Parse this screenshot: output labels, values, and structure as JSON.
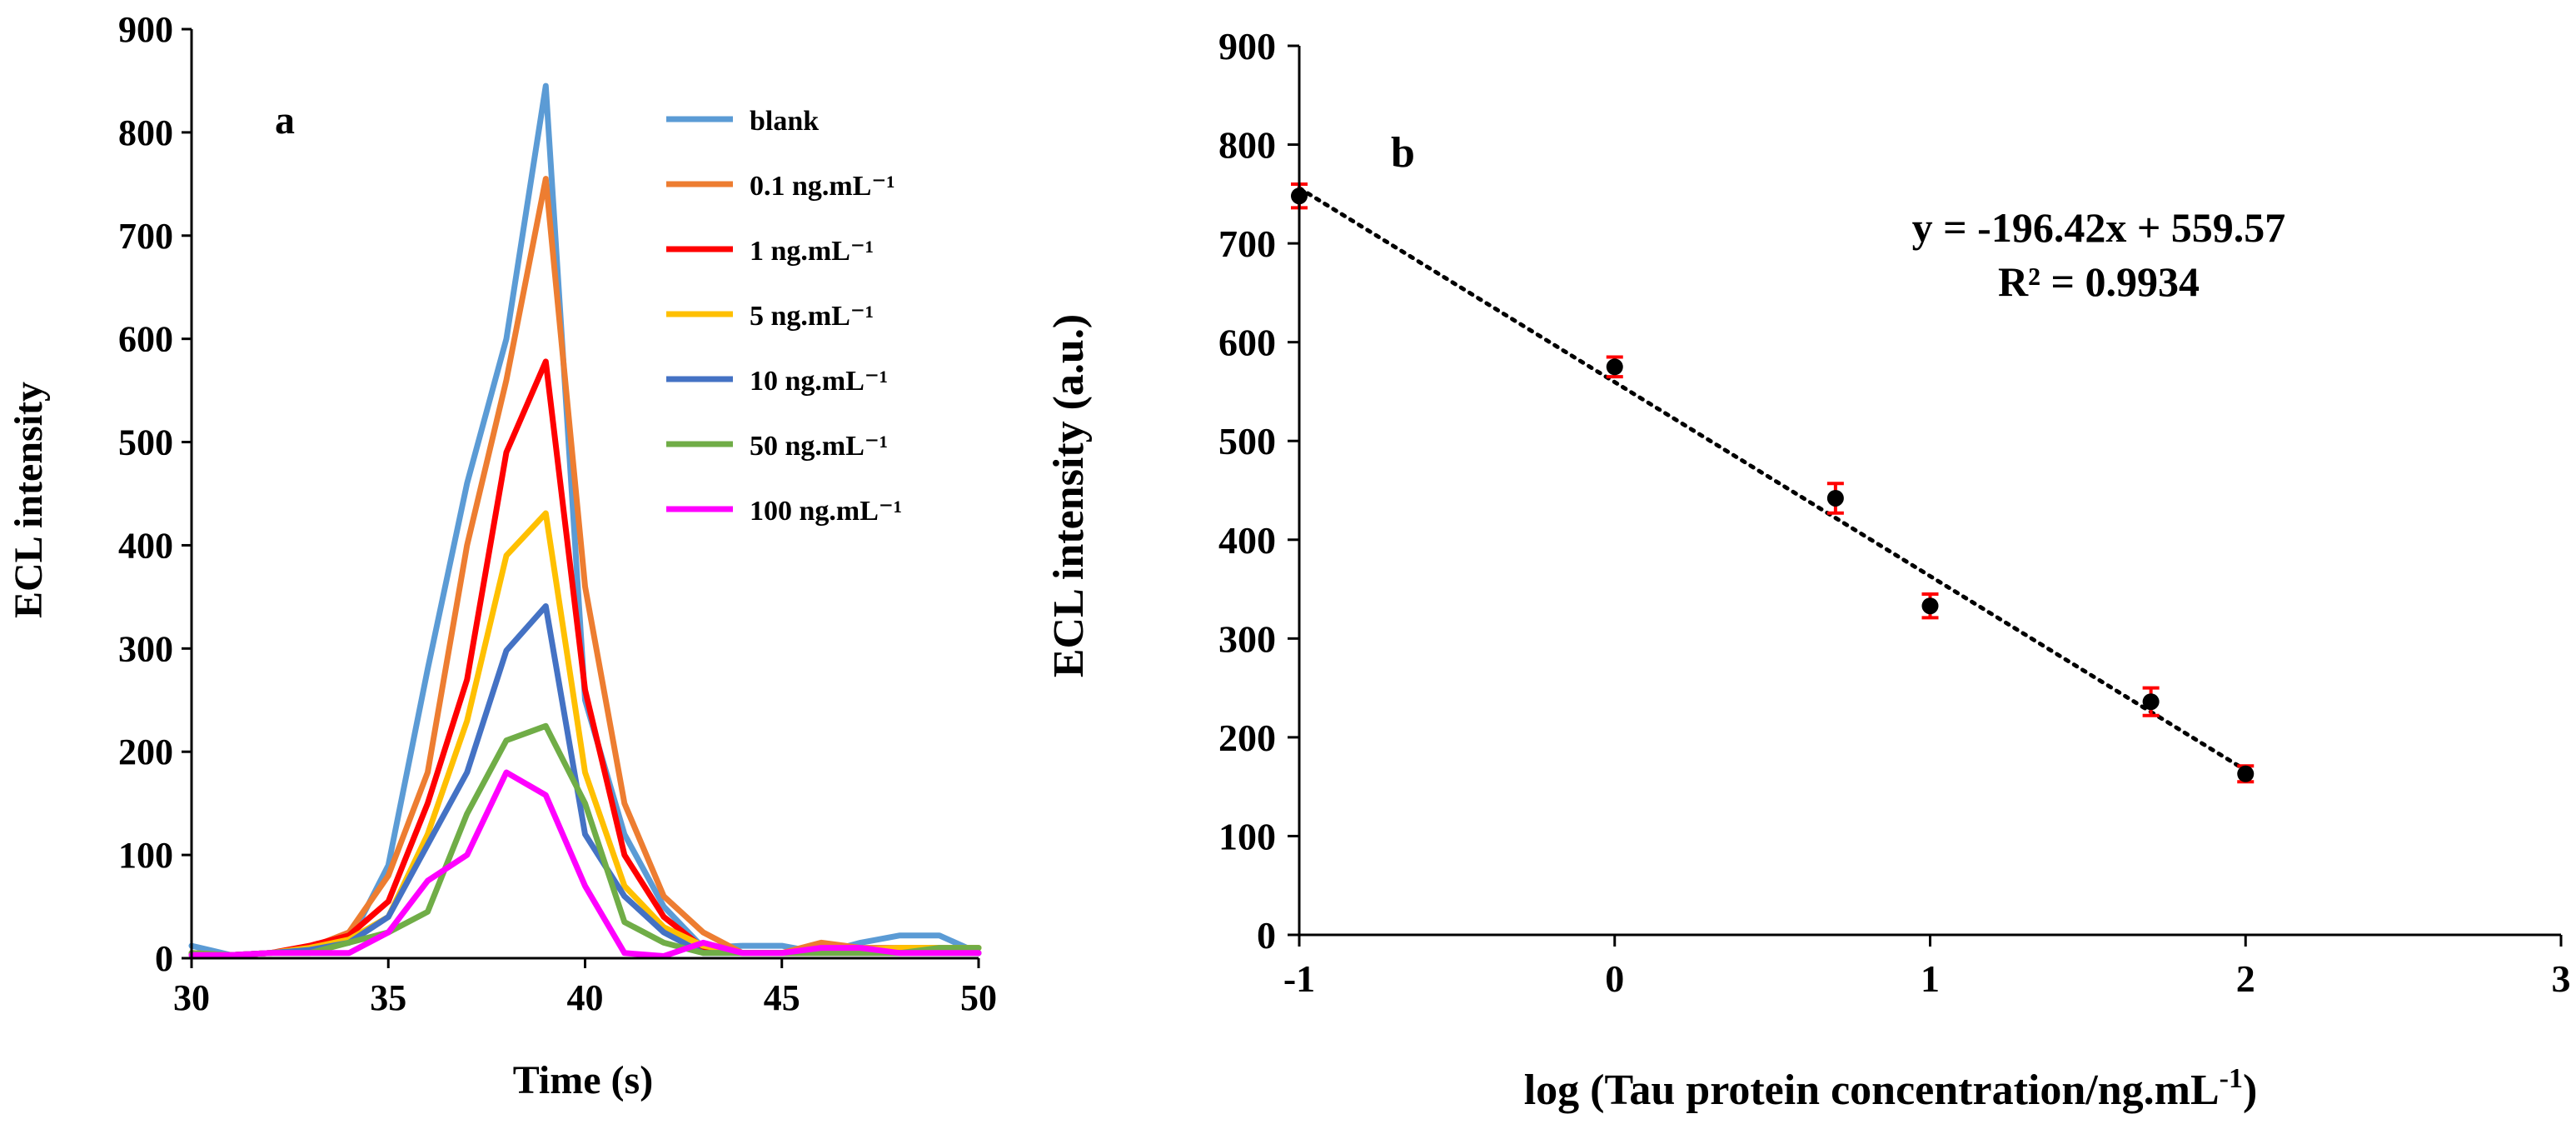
{
  "chart_data": [
    {
      "panel": "a",
      "type": "line",
      "title": "",
      "xlabel": "Time (s)",
      "ylabel": "ECL intensity",
      "xlim": [
        30,
        50
      ],
      "ylim": [
        0,
        900
      ],
      "xticks": [
        "30",
        "35",
        "40",
        "45",
        "50"
      ],
      "yticks": [
        "0",
        "100",
        "200",
        "300",
        "400",
        "500",
        "600",
        "700",
        "800",
        "900"
      ],
      "grid": false,
      "legend_position": "top-right",
      "x": [
        30,
        31,
        32,
        33,
        34,
        35,
        36,
        37,
        38,
        39,
        40,
        41,
        42,
        43,
        44,
        45,
        46,
        47,
        48,
        49,
        50
      ],
      "series": [
        {
          "name": "blank",
          "color": "#5b9bd5",
          "values": [
            12,
            3,
            5,
            8,
            15,
            90,
            280,
            460,
            600,
            845,
            250,
            120,
            50,
            10,
            12,
            12,
            5,
            15,
            22,
            22,
            5
          ]
        },
        {
          "name": "0.1 ng.mL⁻¹",
          "color": "#ed7d31",
          "values": [
            5,
            3,
            5,
            10,
            25,
            80,
            180,
            400,
            560,
            755,
            360,
            150,
            60,
            25,
            5,
            5,
            15,
            10,
            10,
            10,
            10
          ]
        },
        {
          "name": "1 ng.mL⁻¹",
          "color": "#ff0000",
          "values": [
            3,
            3,
            5,
            12,
            22,
            55,
            150,
            270,
            490,
            578,
            260,
            100,
            40,
            10,
            5,
            5,
            5,
            5,
            5,
            5,
            5
          ]
        },
        {
          "name": "5 ng.mL⁻¹",
          "color": "#ffc000",
          "values": [
            3,
            3,
            5,
            10,
            18,
            40,
            120,
            230,
            390,
            431,
            180,
            70,
            30,
            12,
            5,
            5,
            5,
            8,
            10,
            10,
            10
          ]
        },
        {
          "name": "10 ng.mL⁻¹",
          "color": "#4472c4",
          "values": [
            3,
            3,
            5,
            8,
            15,
            40,
            110,
            180,
            298,
            341,
            120,
            60,
            25,
            5,
            5,
            5,
            5,
            5,
            5,
            5,
            5
          ]
        },
        {
          "name": "50 ng.mL⁻¹",
          "color": "#70ad47",
          "values": [
            5,
            3,
            5,
            5,
            15,
            25,
            45,
            140,
            211,
            225,
            150,
            35,
            15,
            5,
            5,
            5,
            5,
            5,
            5,
            10,
            10
          ]
        },
        {
          "name": "100 ng.mL⁻¹",
          "color": "#ff00ff",
          "values": [
            3,
            3,
            5,
            5,
            5,
            25,
            75,
            100,
            180,
            158,
            70,
            5,
            2,
            15,
            5,
            5,
            10,
            10,
            5,
            5,
            5
          ]
        }
      ]
    },
    {
      "panel": "b",
      "type": "scatter",
      "title": "",
      "xlabel": "log (Tau protein concentration/ng.mL",
      "xlabel_sup": "-1",
      "xlabel_end": ")",
      "ylabel": "ECL intensity (a.u.)",
      "xlim": [
        -1,
        3
      ],
      "ylim": [
        0,
        900
      ],
      "xticks": [
        "-1",
        "0",
        "1",
        "2",
        "3"
      ],
      "yticks": [
        "0",
        "100",
        "200",
        "300",
        "400",
        "500",
        "600",
        "700",
        "800",
        "900"
      ],
      "grid": false,
      "points": [
        {
          "x": -1.0,
          "y": 748,
          "err": 12
        },
        {
          "x": 0.0,
          "y": 575,
          "err": 10
        },
        {
          "x": 0.7,
          "y": 442,
          "err": 15
        },
        {
          "x": 1.0,
          "y": 333,
          "err": 12
        },
        {
          "x": 1.7,
          "y": 236,
          "err": 14
        },
        {
          "x": 2.0,
          "y": 163,
          "err": 8
        }
      ],
      "trendline": {
        "slope": -196.42,
        "intercept": 559.57,
        "x_range": [
          -1,
          2
        ]
      },
      "point_color": "#000000",
      "error_color": "#ff0000",
      "annotations": {
        "equation": "y = -196.42x + 559.57",
        "r2": "R² = 0.9934"
      }
    }
  ]
}
